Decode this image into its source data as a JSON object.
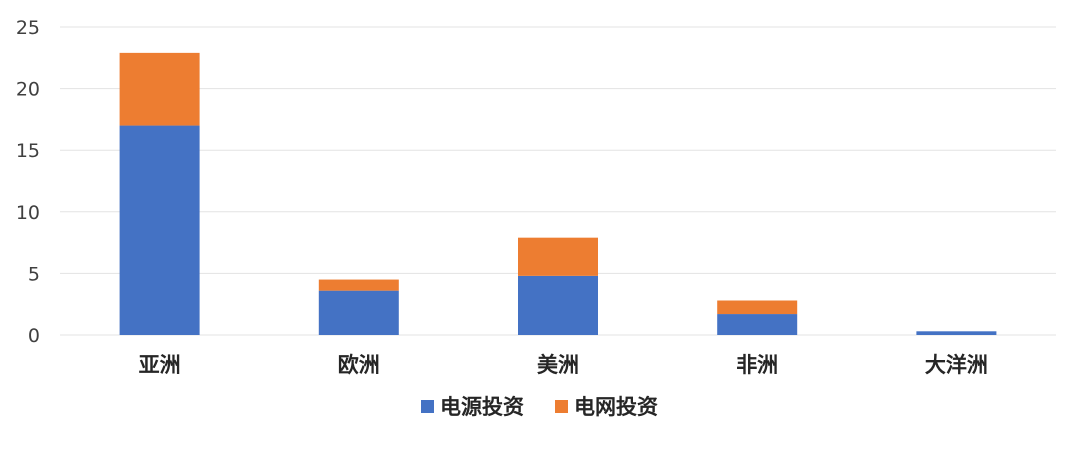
{
  "chart_data": {
    "type": "bar",
    "stacked": true,
    "title": "",
    "xlabel": "",
    "ylabel": "",
    "categories": [
      "亚洲",
      "欧洲",
      "美洲",
      "非洲",
      "大洋洲"
    ],
    "series": [
      {
        "name": "电源投资",
        "color": "#4472C4",
        "values": [
          17.0,
          3.6,
          4.8,
          1.7,
          0.3
        ]
      },
      {
        "name": "电网投资",
        "color": "#ED7D31",
        "values": [
          5.9,
          0.9,
          3.1,
          1.1,
          0.0
        ]
      }
    ],
    "ylim": [
      0,
      25
    ],
    "yticks": [
      0,
      5,
      10,
      15,
      20,
      25
    ],
    "grid": true,
    "legend_position": "bottom"
  }
}
